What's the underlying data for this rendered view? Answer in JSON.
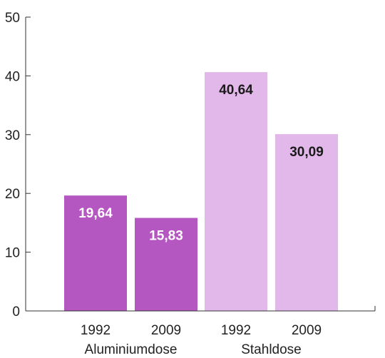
{
  "chart_data": {
    "type": "bar",
    "title": "",
    "xlabel": "",
    "ylabel": "",
    "ylim": [
      0,
      50
    ],
    "yticks": [
      "0",
      "10",
      "20",
      "30",
      "40",
      "50"
    ],
    "grid": false,
    "legend": "none",
    "bars": [
      {
        "category": "1992",
        "group": "Aluminiumdose",
        "value": 19.64,
        "label": "19,64",
        "color": "#b557c0",
        "label_color": "#ffffff"
      },
      {
        "category": "2009",
        "group": "Aluminiumdose",
        "value": 15.83,
        "label": "15,83",
        "color": "#b557c0",
        "label_color": "#ffffff"
      },
      {
        "category": "1992",
        "group": "Stahldose",
        "value": 40.64,
        "label": "40,64",
        "color": "#e2b8ea",
        "label_color": "#1a1a1a"
      },
      {
        "category": "2009",
        "group": "Stahldose",
        "value": 30.09,
        "label": "30,09",
        "color": "#e2b8ea",
        "label_color": "#1a1a1a"
      }
    ],
    "groups": [
      "Aluminiumdose",
      "Stahldose"
    ]
  }
}
